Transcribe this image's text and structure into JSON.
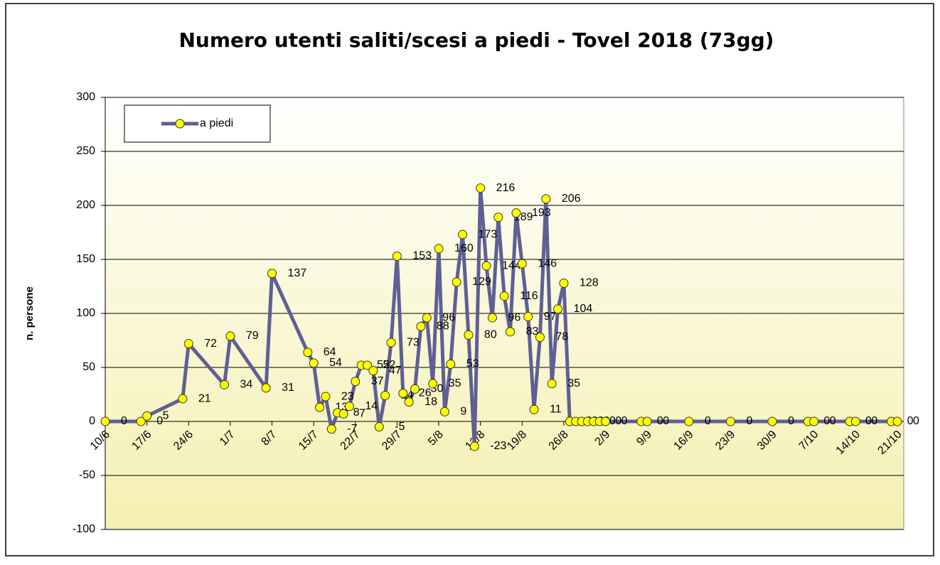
{
  "chart_data": {
    "type": "line",
    "title": "Numero utenti saliti/scesi a piedi - Tovel 2018 (73gg)",
    "y_label": "n. persone",
    "x": [
      "10/6",
      "16/6",
      "17/6",
      "23/6",
      "24/6",
      "30/6",
      "1/7",
      "7/7",
      "8/7",
      "14/7",
      "15/7",
      "16/7",
      "17/7",
      "18/7",
      "19/7",
      "20/7",
      "21/7",
      "22/7",
      "23/7",
      "24/7",
      "25/7",
      "26/7",
      "27/7",
      "28/7",
      "29/7",
      "30/7",
      "31/7",
      "1/8",
      "2/8",
      "3/8",
      "4/8",
      "5/8",
      "6/8",
      "7/8",
      "8/8",
      "9/8",
      "10/8",
      "11/8",
      "12/8",
      "13/8",
      "14/8",
      "15/8",
      "16/8",
      "17/8",
      "18/8",
      "19/8",
      "20/8",
      "21/8",
      "22/8",
      "23/8",
      "24/8",
      "25/8",
      "26/8",
      "27/8",
      "28/8",
      "29/8",
      "30/8",
      "31/8",
      "1/9",
      "2/9",
      "8/9",
      "9/9",
      "16/9",
      "23/9",
      "30/9",
      "6/10",
      "7/10",
      "13/10",
      "14/10",
      "20/10",
      "21/10"
    ],
    "series": [
      {
        "name": "a piedi",
        "color": "#5f5f96",
        "marker_color": "#ffff00",
        "values": [
          0,
          0,
          5,
          21,
          72,
          34,
          79,
          31,
          137,
          64,
          54,
          13,
          23,
          -7,
          8,
          7,
          14,
          37,
          52,
          52,
          47,
          -5,
          24,
          73,
          153,
          26,
          18,
          30,
          88,
          96,
          35,
          160,
          9,
          53,
          129,
          173,
          80,
          -23,
          216,
          144,
          96,
          189,
          116,
          83,
          193,
          146,
          97,
          11,
          78,
          206,
          35,
          104,
          128,
          0,
          0,
          0,
          0,
          0,
          0,
          0,
          0,
          0,
          0,
          0,
          0,
          0,
          0,
          0,
          0,
          0,
          0
        ]
      }
    ],
    "xlim": [
      "10/6",
      "21/10"
    ],
    "xticks": [
      "10/6",
      "17/6",
      "24/6",
      "1/7",
      "8/7",
      "15/7",
      "22/7",
      "29/7",
      "5/8",
      "12/8",
      "19/8",
      "26/8",
      "2/9",
      "9/9",
      "16/9",
      "23/9",
      "30/9",
      "7/10",
      "14/10",
      "21/10"
    ],
    "ylim": [
      -100,
      300
    ],
    "yticks": [
      -100,
      -50,
      0,
      50,
      100,
      150,
      200,
      250,
      300
    ],
    "grid": true,
    "legend": "upper left",
    "data_labels": true
  }
}
